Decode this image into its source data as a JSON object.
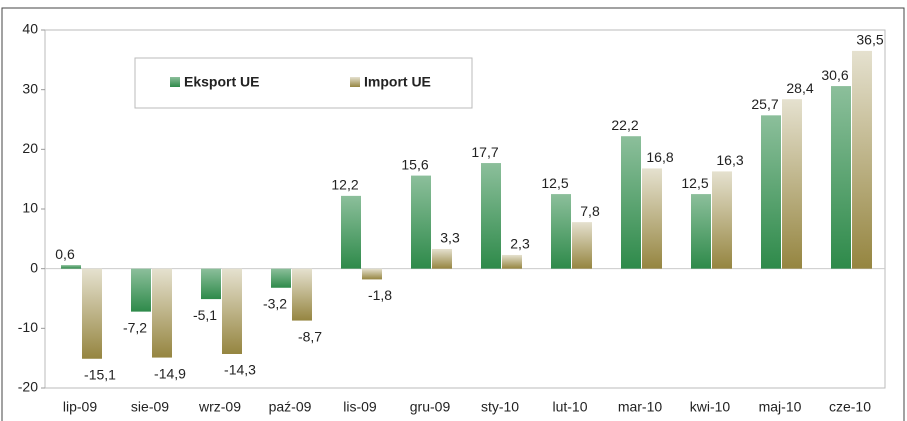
{
  "chart_data": {
    "type": "bar",
    "categories": [
      "lip-09",
      "sie-09",
      "wrz-09",
      "paź-09",
      "lis-09",
      "gru-09",
      "sty-10",
      "lut-10",
      "mar-10",
      "kwi-10",
      "maj-10",
      "cze-10"
    ],
    "series": [
      {
        "name": "Eksport UE",
        "color": "#2e8a4a",
        "values": [
          0.6,
          -7.2,
          -5.1,
          -3.2,
          12.2,
          15.6,
          17.7,
          12.5,
          22.2,
          12.5,
          25.7,
          30.6
        ],
        "value_labels": [
          "0,6",
          "-7,2",
          "-5,1",
          "-3,2",
          "12,2",
          "15,6",
          "17,7",
          "12,5",
          "22,2",
          "12,5",
          "25,7",
          "30,6"
        ]
      },
      {
        "name": "Import UE",
        "color": "#958540",
        "values": [
          -15.1,
          -14.9,
          -14.3,
          -8.7,
          -1.8,
          3.3,
          2.3,
          7.8,
          16.8,
          16.3,
          28.4,
          36.5
        ],
        "value_labels": [
          "-15,1",
          "-14,9",
          "-14,3",
          "-8,7",
          "-1,8",
          "3,3",
          "2,3",
          "7,8",
          "16,8",
          "16,3",
          "28,4",
          "36,5"
        ]
      }
    ],
    "ylim": [
      -20,
      40
    ],
    "yticks": [
      -20,
      -10,
      0,
      10,
      20,
      30,
      40
    ]
  }
}
